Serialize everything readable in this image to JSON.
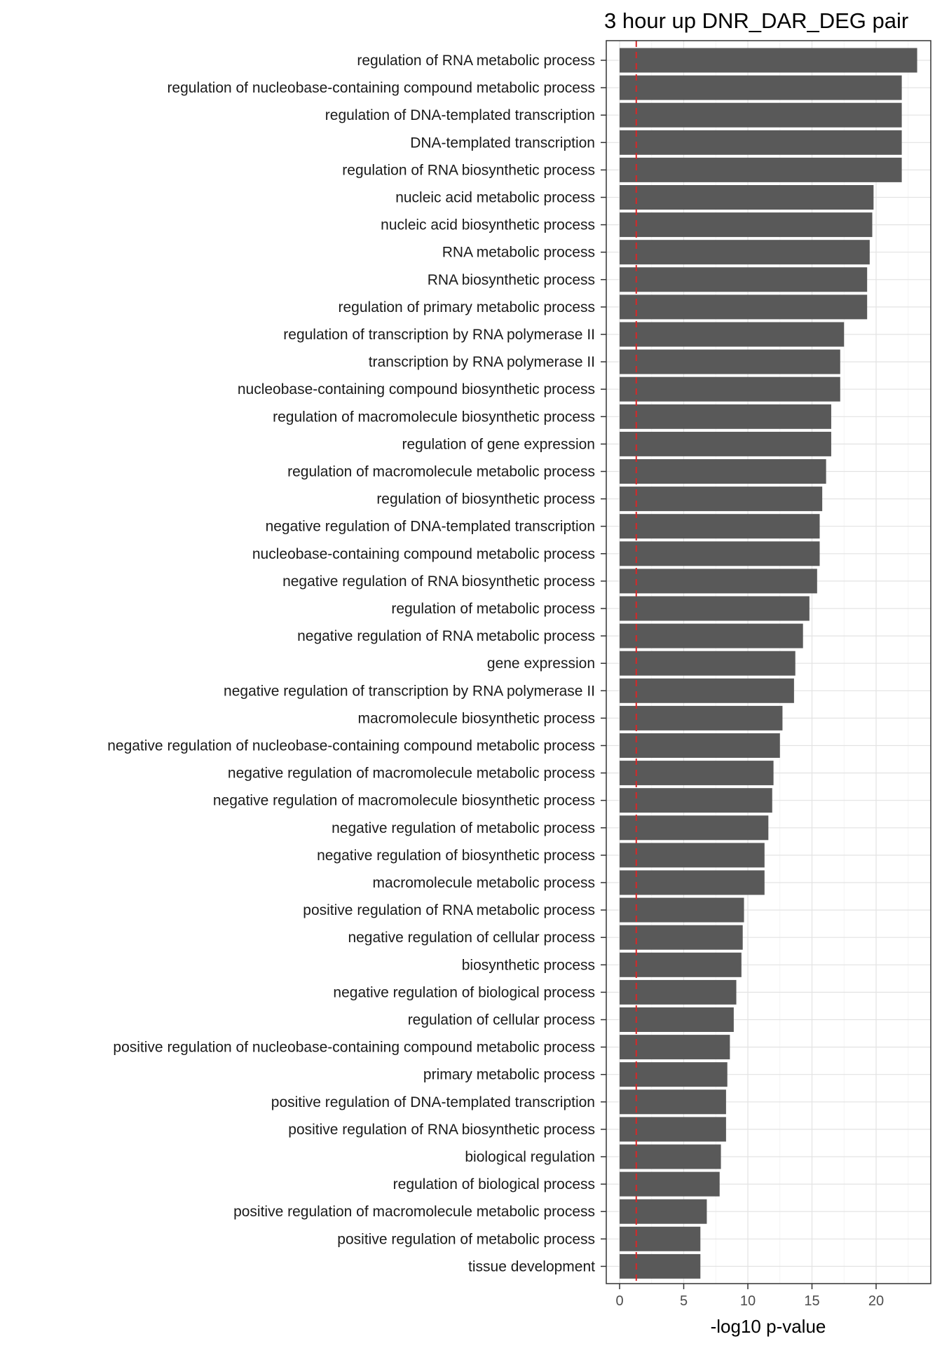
{
  "chart_data": {
    "type": "bar",
    "orientation": "horizontal",
    "title": "3 hour up DNR_DAR_DEG pair",
    "xlabel": "-log10 p-value",
    "ylabel": "",
    "xlim": [
      0,
      24
    ],
    "x_ticks": [
      0,
      5,
      10,
      15,
      20
    ],
    "grid": true,
    "reference_line": {
      "x": 1.3,
      "color": "#d62728",
      "style": "dashed"
    },
    "bar_color": "#595959",
    "categories": [
      "regulation of RNA metabolic process",
      "regulation of nucleobase-containing compound metabolic process",
      "regulation of DNA-templated transcription",
      "DNA-templated transcription",
      "regulation of RNA biosynthetic process",
      "nucleic acid metabolic process",
      "nucleic acid biosynthetic process",
      "RNA metabolic process",
      "RNA biosynthetic process",
      "regulation of primary metabolic process",
      "regulation of transcription by RNA polymerase II",
      "transcription by RNA polymerase II",
      "nucleobase-containing compound biosynthetic process",
      "regulation of macromolecule biosynthetic process",
      "regulation of gene expression",
      "regulation of macromolecule metabolic process",
      "regulation of biosynthetic process",
      "negative regulation of DNA-templated transcription",
      "nucleobase-containing compound metabolic process",
      "negative regulation of RNA biosynthetic process",
      "regulation of metabolic process",
      "negative regulation of RNA metabolic process",
      "gene expression",
      "negative regulation of transcription by RNA polymerase II",
      "macromolecule biosynthetic process",
      "negative regulation of nucleobase-containing compound metabolic process",
      "negative regulation of macromolecule metabolic process",
      "negative regulation of macromolecule biosynthetic process",
      "negative regulation of metabolic process",
      "negative regulation of biosynthetic process",
      "macromolecule metabolic process",
      "positive regulation of RNA metabolic process",
      "negative regulation of cellular process",
      "biosynthetic process",
      "negative regulation of biological process",
      "regulation of cellular process",
      "positive regulation of nucleobase-containing compound metabolic process",
      "primary metabolic process",
      "positive regulation of DNA-templated transcription",
      "positive regulation of RNA biosynthetic process",
      "biological regulation",
      "regulation of biological process",
      "positive regulation of macromolecule metabolic process",
      "positive regulation of metabolic process",
      "tissue development"
    ],
    "values": [
      23.2,
      22.0,
      22.0,
      22.0,
      22.0,
      19.8,
      19.7,
      19.5,
      19.3,
      19.3,
      17.5,
      17.2,
      17.2,
      16.5,
      16.5,
      16.1,
      15.8,
      15.6,
      15.6,
      15.4,
      14.8,
      14.3,
      13.7,
      13.6,
      12.7,
      12.5,
      12.0,
      11.9,
      11.6,
      11.3,
      11.3,
      9.7,
      9.6,
      9.5,
      9.1,
      8.9,
      8.6,
      8.4,
      8.3,
      8.3,
      7.9,
      7.8,
      6.8,
      6.3,
      6.3
    ]
  }
}
